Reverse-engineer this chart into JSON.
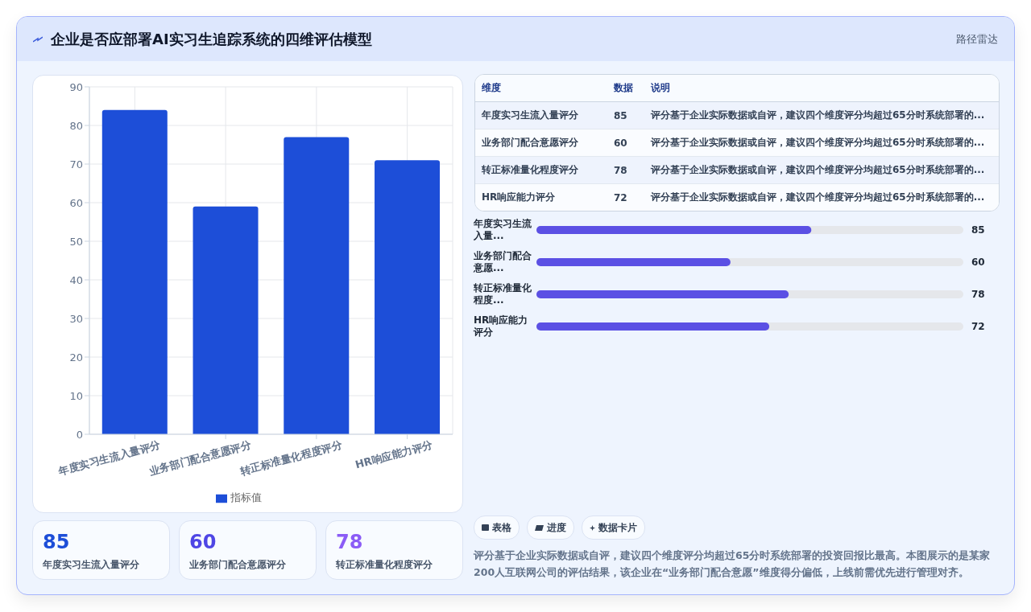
{
  "chart_data": [
    {
      "type": "bar",
      "title": "企业是否应部署AI实习生追踪系统的四维评估模型",
      "annotations": [
        "路径雷达"
      ],
      "categories": [
        "年度实习生流入量评分",
        "业务部门配合意愿评分",
        "转正标准量化程度评分",
        "HR响应能力评分"
      ],
      "series": [
        {
          "name": "指标值",
          "color": "#1d4ed8",
          "values": [
            84,
            59,
            77,
            71
          ]
        }
      ],
      "ylim": [
        0,
        90
      ],
      "yticks": [
        0,
        10,
        20,
        30,
        40,
        50,
        60,
        70,
        80,
        90
      ],
      "grid": true,
      "legend": "bottom"
    },
    {
      "type": "other",
      "categories": [
        "年度实习生流入量评分",
        "业务部门配合意愿评分",
        "转正标准量化程度评分",
        "HR响应能力评分"
      ],
      "values": [
        85,
        60,
        78,
        72
      ],
      "data_labels": true,
      "annotations": [
        "维度",
        "数据",
        "说明",
        "评分基于企业实际数据或自评，建议四个维度评分均超过65分时系统部署的..."
      ]
    },
    {
      "type": "bar",
      "orientation": "horizontal",
      "categories": [
        "年度实习生流入量...",
        "业务部门配合意愿...",
        "转正标准量化程度...",
        "HR响应能力评分"
      ],
      "values": [
        85,
        60,
        78,
        72
      ],
      "color": "#5b50e4",
      "xlim": [
        0,
        132
      ],
      "tick_labels": false,
      "data_labels": true,
      "annotations": [
        "表格",
        "进度",
        "数据卡片",
        "评分基于企业实际数据或自评，建议四个维度评分均超过65分时系统部署的投资回报比最高。本图展示的是某家200人互联网公司的评估结果，该企业在“业务部门配合意愿”维度得分偏低，上线前需优先进行管理对齐。"
      ]
    },
    {
      "type": "other",
      "categories": [
        "年度实习生流入量评分",
        "业务部门配合意愿评分",
        "转正标准量化程度评分"
      ],
      "values": [
        85,
        60,
        78
      ],
      "data_labels": true
    }
  ]
}
